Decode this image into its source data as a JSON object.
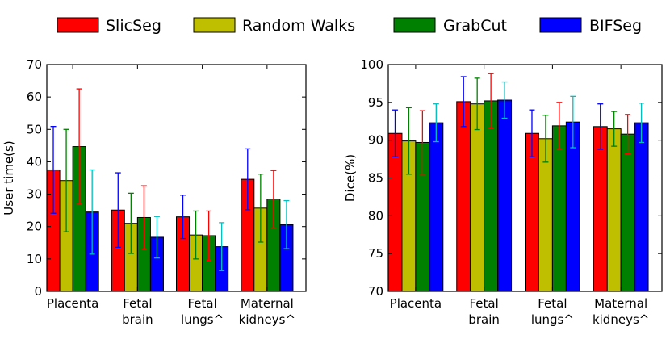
{
  "legend": [
    {
      "name": "SlicSeg",
      "color": "#ff0000"
    },
    {
      "name": "Random Walks",
      "color": "#bfbf00"
    },
    {
      "name": "GrabCut",
      "color": "#008000"
    },
    {
      "name": "BIFSeg",
      "color": "#0000ff"
    }
  ],
  "chart_data": [
    {
      "type": "bar",
      "title": "",
      "xlabel": "",
      "ylabel": "User time(s)",
      "ylim": [
        0,
        70
      ],
      "yticks": [
        0,
        10,
        20,
        30,
        40,
        50,
        60,
        70
      ],
      "categories": [
        [
          "Placenta"
        ],
        [
          "Fetal",
          "brain"
        ],
        [
          "Fetal",
          "lungs^"
        ],
        [
          "Maternal",
          "kidneys^"
        ]
      ],
      "series": [
        {
          "name": "SlicSeg",
          "color": "#ff0000",
          "error_color": "#0000ff",
          "values": [
            37.5,
            25.1,
            23.0,
            34.6
          ],
          "errors": [
            13.4,
            11.5,
            6.7,
            9.4
          ]
        },
        {
          "name": "Random Walks",
          "color": "#bfbf00",
          "error_color": "#008000",
          "values": [
            34.2,
            21.0,
            17.4,
            25.7
          ],
          "errors": [
            15.8,
            9.3,
            7.4,
            10.5
          ]
        },
        {
          "name": "GrabCut",
          "color": "#008000",
          "error_color": "#ff0000",
          "values": [
            44.7,
            22.8,
            17.2,
            28.5
          ],
          "errors": [
            17.8,
            9.8,
            7.6,
            8.8
          ]
        },
        {
          "name": "BIFSeg",
          "color": "#0000ff",
          "error_color": "#00bfbf",
          "values": [
            24.5,
            16.7,
            13.8,
            20.6
          ],
          "errors": [
            13.0,
            6.4,
            7.4,
            7.4
          ]
        }
      ]
    },
    {
      "type": "bar",
      "title": "",
      "xlabel": "",
      "ylabel": "Dice(%)",
      "ylim": [
        70,
        100
      ],
      "yticks": [
        70,
        75,
        80,
        85,
        90,
        95,
        100
      ],
      "categories": [
        [
          "Placenta"
        ],
        [
          "Fetal",
          "brain"
        ],
        [
          "Fetal",
          "lungs^"
        ],
        [
          "Maternal",
          "kidneys^"
        ]
      ],
      "series": [
        {
          "name": "SlicSeg",
          "color": "#ff0000",
          "error_color": "#0000ff",
          "values": [
            90.9,
            95.1,
            90.9,
            91.8
          ],
          "errors": [
            3.1,
            3.3,
            3.1,
            3.0
          ]
        },
        {
          "name": "Random Walks",
          "color": "#bfbf00",
          "error_color": "#008000",
          "values": [
            89.9,
            94.8,
            90.2,
            91.5
          ],
          "errors": [
            4.4,
            3.4,
            3.1,
            2.3
          ]
        },
        {
          "name": "GrabCut",
          "color": "#008000",
          "error_color": "#ff0000",
          "values": [
            89.7,
            95.2,
            91.9,
            90.8
          ],
          "errors": [
            4.2,
            3.6,
            3.1,
            2.6
          ]
        },
        {
          "name": "BIFSeg",
          "color": "#0000ff",
          "error_color": "#00bfbf",
          "values": [
            92.3,
            95.3,
            92.4,
            92.3
          ],
          "errors": [
            2.5,
            2.4,
            3.4,
            2.6
          ]
        }
      ]
    }
  ]
}
